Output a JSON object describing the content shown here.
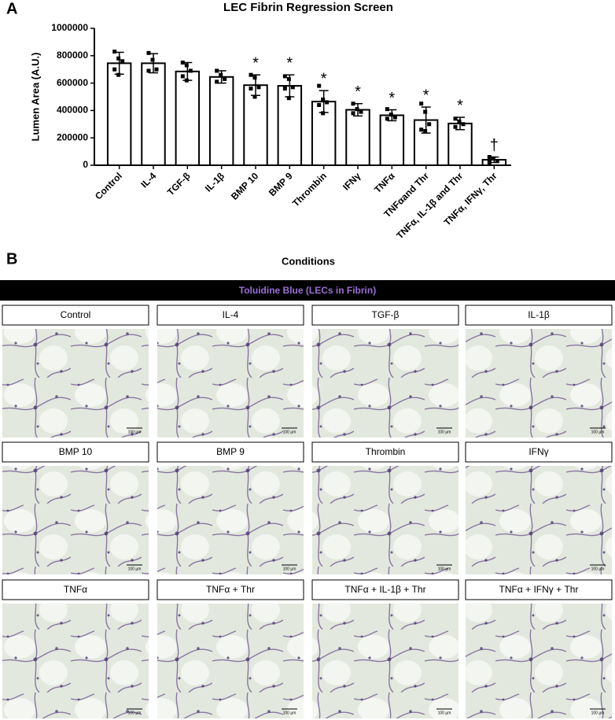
{
  "chart_data": {
    "type": "bar",
    "panel_label": "A",
    "title": "LEC Fibrin Regression  Screen",
    "y_label": "Lumen Area (A.U.)",
    "categories": [
      "Control",
      "IL-4",
      "TGF-β",
      "IL-1β",
      "BMP 10",
      "BMP 9",
      "Thrombin",
      "IFNγ",
      "TNFα",
      "TNFαand Thr",
      "TNFα, IL-1β and Thr",
      "TNFα, IFNγ, Thr"
    ],
    "values": [
      745000,
      745000,
      685000,
      645000,
      585000,
      580000,
      465000,
      405000,
      365000,
      330000,
      305000,
      40000
    ],
    "errors": [
      80000,
      70000,
      65000,
      45000,
      75000,
      80000,
      80000,
      45000,
      40000,
      95000,
      45000,
      20000
    ],
    "points": [
      [
        830000,
        780000,
        760000,
        700000,
        660000
      ],
      [
        820000,
        770000,
        700000,
        690000
      ],
      [
        750000,
        730000,
        690000,
        650000,
        620000
      ],
      [
        690000,
        660000,
        630000,
        610000
      ],
      [
        660000,
        640000,
        570000,
        560000,
        500000
      ],
      [
        650000,
        630000,
        570000,
        560000,
        490000
      ],
      [
        580000,
        480000,
        460000,
        440000,
        380000
      ],
      [
        450000,
        410000,
        390000,
        380000
      ],
      [
        410000,
        370000,
        350000,
        340000
      ],
      [
        450000,
        390000,
        300000,
        260000,
        250000
      ],
      [
        340000,
        320000,
        300000,
        280000
      ],
      [
        60000,
        50000,
        30000,
        20000
      ]
    ],
    "annotations": [
      null,
      null,
      null,
      null,
      "*",
      "*",
      "*",
      "*",
      "*",
      "*",
      "*",
      "†"
    ],
    "color": "#ffffff",
    "edge_color": "#000000",
    "ylim": [
      0,
      1000000
    ],
    "yticks": [
      0,
      200000,
      400000,
      600000,
      800000,
      1000000
    ],
    "grid": false
  },
  "panel_b": {
    "label": "B",
    "title": "Conditions",
    "banner": "Toluidine Blue (LECs in Fibrin)",
    "scale_label": "100 µm",
    "conditions": [
      "Control",
      "IL-4",
      "TGF-β",
      "IL-1β",
      "BMP 10",
      "BMP 9",
      "Thrombin",
      "IFNγ",
      "TNFα",
      "TNFα + Thr",
      "TNFα  + IL-1β + Thr",
      "TNFα + IFNγ + Thr"
    ]
  }
}
